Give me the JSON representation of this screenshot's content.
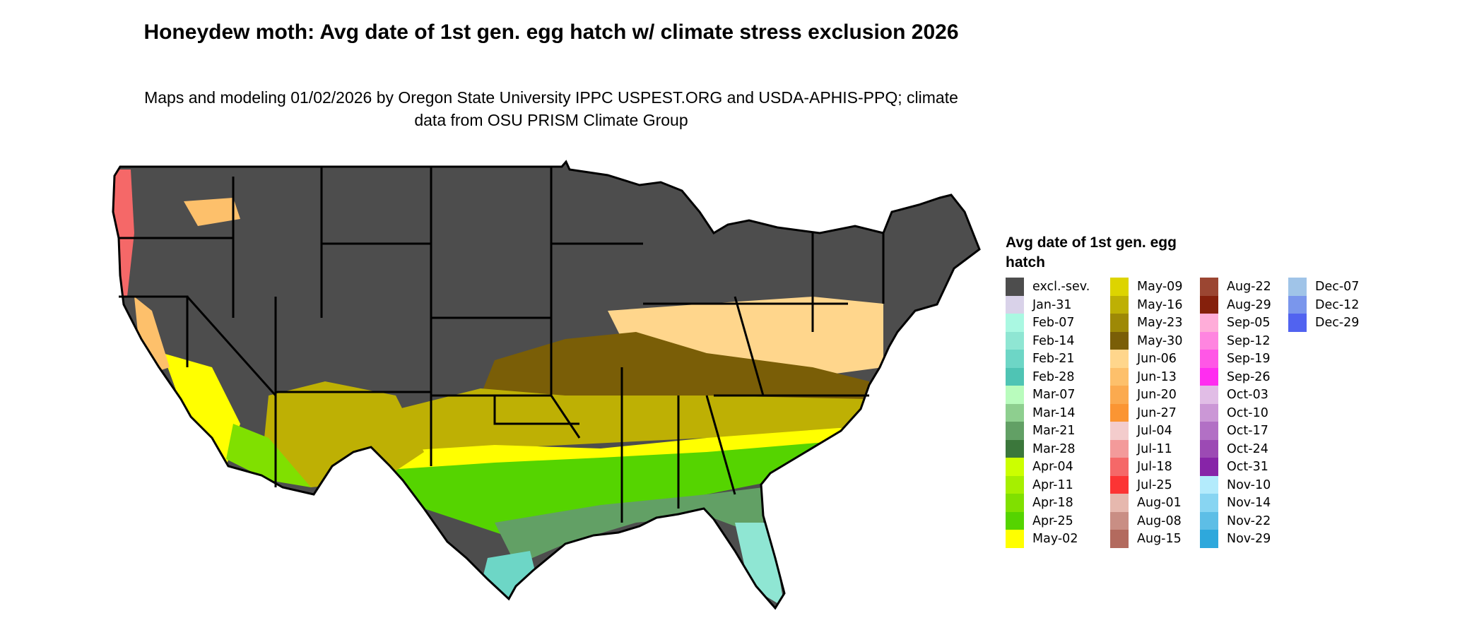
{
  "title": "Honeydew moth: Avg date of 1st gen. egg hatch w/ climate stress exclusion 2026",
  "subtitle": "Maps and modeling 01/02/2026 by Oregon State University IPPC USPEST.ORG and USDA-APHIS-PPQ; climate data from OSU PRISM Climate Group",
  "chart_data": {
    "type": "heatmap",
    "map_region": "Contiguous United States",
    "legend": {
      "title": "Avg date of 1st gen. egg hatch",
      "placement": "right",
      "entries": [
        {
          "label": "excl.-sev.",
          "color": "#4d4d4d"
        },
        {
          "label": "Jan-31",
          "color": "#d9d2e9"
        },
        {
          "label": "Feb-07",
          "color": "#aaf8e2"
        },
        {
          "label": "Feb-14",
          "color": "#8fe6d3"
        },
        {
          "label": "Feb-21",
          "color": "#6dd6c6"
        },
        {
          "label": "Feb-28",
          "color": "#4fc4b4"
        },
        {
          "label": "Mar-07",
          "color": "#b9fcbd"
        },
        {
          "label": "Mar-14",
          "color": "#8ecf8f"
        },
        {
          "label": "Mar-21",
          "color": "#62a065"
        },
        {
          "label": "Mar-28",
          "color": "#3b773b"
        },
        {
          "label": "Apr-04",
          "color": "#ccff00"
        },
        {
          "label": "Apr-11",
          "color": "#a6ef00"
        },
        {
          "label": "Apr-18",
          "color": "#80e000"
        },
        {
          "label": "Apr-25",
          "color": "#55d400"
        },
        {
          "label": "May-02",
          "color": "#ffff00"
        },
        {
          "label": "May-09",
          "color": "#ddd400"
        },
        {
          "label": "May-16",
          "color": "#beb004"
        },
        {
          "label": "May-23",
          "color": "#9e8906"
        },
        {
          "label": "May-30",
          "color": "#7a5e07"
        },
        {
          "label": "Jun-06",
          "color": "#ffd68c"
        },
        {
          "label": "Jun-13",
          "color": "#fdc06b"
        },
        {
          "label": "Jun-20",
          "color": "#fbaa4f"
        },
        {
          "label": "Jun-27",
          "color": "#fb9533"
        },
        {
          "label": "Jul-04",
          "color": "#f3cccc"
        },
        {
          "label": "Jul-11",
          "color": "#f39a9a"
        },
        {
          "label": "Jul-18",
          "color": "#f56868"
        },
        {
          "label": "Jul-25",
          "color": "#fc3434"
        },
        {
          "label": "Aug-01",
          "color": "#e6b8ae"
        },
        {
          "label": "Aug-08",
          "color": "#c98e84"
        },
        {
          "label": "Aug-15",
          "color": "#b36a5e"
        },
        {
          "label": "Aug-22",
          "color": "#9b4632"
        },
        {
          "label": "Aug-29",
          "color": "#85200c"
        },
        {
          "label": "Sep-05",
          "color": "#ffadd9"
        },
        {
          "label": "Sep-12",
          "color": "#ff85e0"
        },
        {
          "label": "Sep-19",
          "color": "#ff57e6"
        },
        {
          "label": "Sep-26",
          "color": "#ff2df0"
        },
        {
          "label": "Oct-03",
          "color": "#e1bde6"
        },
        {
          "label": "Oct-10",
          "color": "#cb97d6"
        },
        {
          "label": "Oct-17",
          "color": "#b270c5"
        },
        {
          "label": "Oct-24",
          "color": "#9c4ab4"
        },
        {
          "label": "Oct-31",
          "color": "#8724a8"
        },
        {
          "label": "Nov-10",
          "color": "#b3ebfc"
        },
        {
          "label": "Nov-14",
          "color": "#88d5f2"
        },
        {
          "label": "Nov-22",
          "color": "#5dbee6"
        },
        {
          "label": "Nov-29",
          "color": "#2ea8dc"
        },
        {
          "label": "Dec-07",
          "color": "#a0c4e8"
        },
        {
          "label": "Dec-12",
          "color": "#7a96ec"
        },
        {
          "label": "Dec-29",
          "color": "#5163f0"
        }
      ]
    }
  }
}
